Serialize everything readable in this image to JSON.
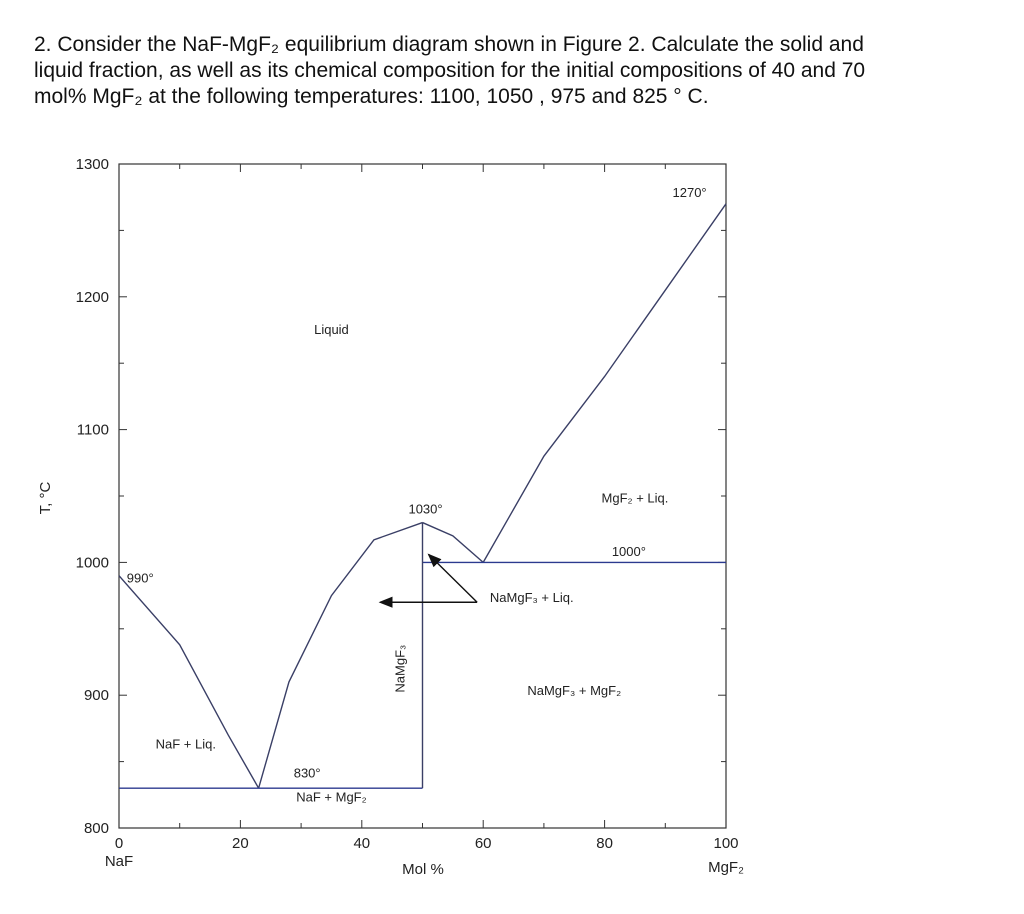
{
  "question": {
    "line1": "2. Consider the NaF-MgF₂ equilibrium diagram shown in Figure 2. Calculate the solid and",
    "line2": "liquid fraction, as well as its chemical composition for the initial compositions of 40 and 70",
    "line3": "mol% MgF₂ at the following temperatures: 1100, 1050 , 975 and 825 ° C."
  },
  "chart_data": {
    "type": "phase-diagram",
    "xlabel": "Mol %",
    "ylabel": "T, °C",
    "xlim": [
      0,
      100
    ],
    "ylim": [
      800,
      1300
    ],
    "x_ticks": [
      0,
      20,
      40,
      60,
      80,
      100
    ],
    "y_ticks": [
      800,
      900,
      1000,
      1100,
      1200,
      1300
    ],
    "x_end_labels": {
      "left": "NaF",
      "right": "MgF₂"
    },
    "lines": [
      {
        "name": "liquidus-naf",
        "points": [
          [
            0,
            990
          ],
          [
            10,
            938
          ],
          [
            18,
            870
          ],
          [
            23,
            830
          ]
        ]
      },
      {
        "name": "liquidus-namgf3-left",
        "points": [
          [
            23,
            830
          ],
          [
            28,
            910
          ],
          [
            35,
            975
          ],
          [
            42,
            1017
          ],
          [
            50,
            1030
          ]
        ]
      },
      {
        "name": "liquidus-namgf3-right",
        "points": [
          [
            50,
            1030
          ],
          [
            55,
            1020
          ],
          [
            60,
            1000
          ]
        ]
      },
      {
        "name": "liquidus-mgf2",
        "points": [
          [
            60,
            1000
          ],
          [
            70,
            1080
          ],
          [
            80,
            1140
          ],
          [
            90,
            1205
          ],
          [
            100,
            1270
          ]
        ]
      },
      {
        "name": "eutectic-830",
        "points": [
          [
            0,
            830
          ],
          [
            50,
            830
          ]
        ],
        "color": "#2b3a8f"
      },
      {
        "name": "eutectic-1000",
        "points": [
          [
            50,
            1000
          ],
          [
            100,
            1000
          ]
        ],
        "color": "#2b3a8f"
      },
      {
        "name": "namgf3-compound",
        "points": [
          [
            50,
            830
          ],
          [
            50,
            1030
          ]
        ]
      }
    ],
    "annotations": [
      {
        "text": "990°",
        "x": 3.5,
        "y": 985
      },
      {
        "text": "1030°",
        "x": 50.5,
        "y": 1037
      },
      {
        "text": "1000°",
        "x": 84,
        "y": 1005
      },
      {
        "text": "1270°",
        "x": 94,
        "y": 1275
      },
      {
        "text": "830°",
        "x": 31,
        "y": 838
      },
      {
        "text": "Liquid",
        "x": 35,
        "y": 1172
      },
      {
        "text": "MgF₂ + Liq.",
        "x": 85,
        "y": 1045
      },
      {
        "text": "NaMgF₃ + Liq.",
        "x": 68,
        "y": 970
      },
      {
        "text": "NaMgF₃ + MgF₂",
        "x": 75,
        "y": 900
      },
      {
        "text": "NaF + Liq.",
        "x": 11,
        "y": 860
      },
      {
        "text": "NaF + MgF₂",
        "x": 35,
        "y": 820
      },
      {
        "text": "NaMgF₃",
        "x": 47,
        "y": 920,
        "rotate": -90
      }
    ],
    "arrows": [
      {
        "from": [
          59,
          970
        ],
        "to": [
          51,
          1006
        ]
      },
      {
        "from": [
          59,
          970
        ],
        "to": [
          43,
          970
        ]
      }
    ],
    "grid": false
  }
}
